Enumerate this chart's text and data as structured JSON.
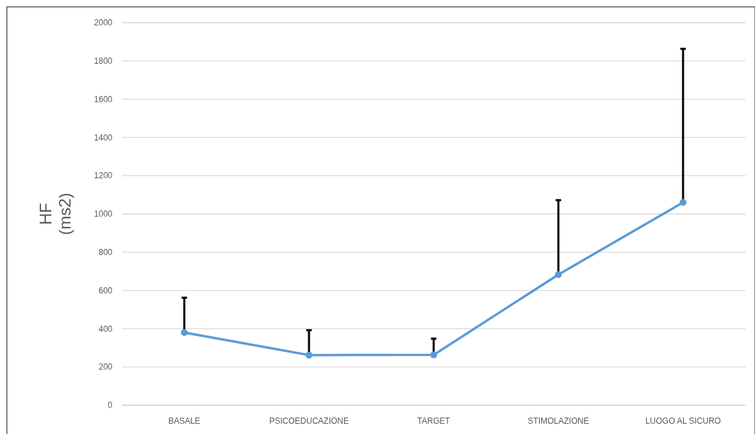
{
  "chart_data": {
    "type": "line",
    "ylabel": "HF\n(ms2)",
    "categories": [
      "BASALE",
      "PSICOEDUCAZIONE",
      "TARGET",
      "STIMOLAZIONE",
      "LUOGO AL SICURO"
    ],
    "series": [
      {
        "color": "#5b9bd5",
        "values": [
          380,
          262,
          263,
          683,
          1060
        ],
        "errors": [
          [
            380,
            562
          ],
          [
            262,
            392
          ],
          [
            263,
            348
          ],
          [
            683,
            1072
          ],
          [
            1060,
            1863
          ]
        ]
      }
    ],
    "ylim": [
      0,
      2000
    ],
    "yticks": [
      0,
      200,
      400,
      600,
      800,
      1000,
      1200,
      1400,
      1600,
      1800,
      2000
    ],
    "grid": "y",
    "marker": "circle",
    "line_style": "solid"
  }
}
